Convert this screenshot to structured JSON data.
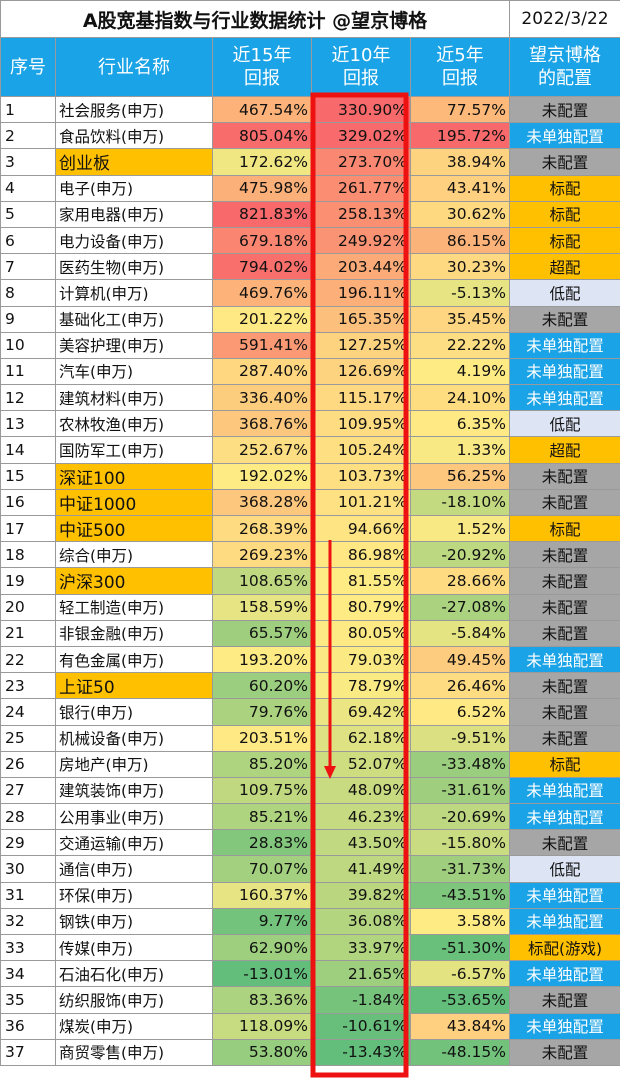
{
  "title": "A股宽基指数与行业数据统计 @望京博格",
  "date": "2022/3/22",
  "headers": {
    "idx": "序号",
    "name": "行业名称",
    "r15": [
      "近15年",
      "回报"
    ],
    "r10": [
      "近10年",
      "回报"
    ],
    "r5": [
      "近5年",
      "回报"
    ],
    "cfg": [
      "望京博格",
      "的配置"
    ]
  },
  "colors": {
    "header_bg": "#1aa3e6",
    "highlight_name": "#ffc000",
    "annotation_red": "#ee1111",
    "scale_low": "#63be7b",
    "scale_mid": "#ffeb84",
    "scale_high": "#f8696b"
  },
  "rows": [
    {
      "idx": "1",
      "name": "社会服务(申万)",
      "hl": false,
      "r15": "467.54%",
      "r10": "330.90%",
      "r5": "77.57%",
      "cfg": "未配置",
      "cfg_type": "gray"
    },
    {
      "idx": "2",
      "name": "食品饮料(申万)",
      "hl": false,
      "r15": "805.04%",
      "r10": "329.02%",
      "r5": "195.72%",
      "cfg": "未单独配置",
      "cfg_type": "blue"
    },
    {
      "idx": "3",
      "name": "创业板",
      "hl": true,
      "r15": "172.62%",
      "r10": "273.70%",
      "r5": "38.94%",
      "cfg": "未配置",
      "cfg_type": "gray"
    },
    {
      "idx": "4",
      "name": "电子(申万)",
      "hl": false,
      "r15": "475.98%",
      "r10": "261.77%",
      "r5": "43.41%",
      "cfg": "标配",
      "cfg_type": "orange"
    },
    {
      "idx": "5",
      "name": "家用电器(申万)",
      "hl": false,
      "r15": "821.83%",
      "r10": "258.13%",
      "r5": "30.62%",
      "cfg": "标配",
      "cfg_type": "orange"
    },
    {
      "idx": "6",
      "name": "电力设备(申万)",
      "hl": false,
      "r15": "679.18%",
      "r10": "249.92%",
      "r5": "86.15%",
      "cfg": "标配",
      "cfg_type": "orange"
    },
    {
      "idx": "7",
      "name": "医药生物(申万)",
      "hl": false,
      "r15": "794.02%",
      "r10": "203.44%",
      "r5": "30.23%",
      "cfg": "超配",
      "cfg_type": "orange"
    },
    {
      "idx": "8",
      "name": "计算机(申万)",
      "hl": false,
      "r15": "469.76%",
      "r10": "196.11%",
      "r5": "-5.13%",
      "cfg": "低配",
      "cfg_type": "light"
    },
    {
      "idx": "9",
      "name": "基础化工(申万)",
      "hl": false,
      "r15": "201.22%",
      "r10": "165.35%",
      "r5": "35.45%",
      "cfg": "未配置",
      "cfg_type": "gray"
    },
    {
      "idx": "10",
      "name": "美容护理(申万)",
      "hl": false,
      "r15": "591.41%",
      "r10": "127.25%",
      "r5": "22.22%",
      "cfg": "未单独配置",
      "cfg_type": "blue"
    },
    {
      "idx": "11",
      "name": "汽车(申万)",
      "hl": false,
      "r15": "287.40%",
      "r10": "126.69%",
      "r5": "4.19%",
      "cfg": "未单独配置",
      "cfg_type": "blue"
    },
    {
      "idx": "12",
      "name": "建筑材料(申万)",
      "hl": false,
      "r15": "336.40%",
      "r10": "115.17%",
      "r5": "24.10%",
      "cfg": "未单独配置",
      "cfg_type": "blue"
    },
    {
      "idx": "13",
      "name": "农林牧渔(申万)",
      "hl": false,
      "r15": "368.76%",
      "r10": "109.95%",
      "r5": "6.35%",
      "cfg": "低配",
      "cfg_type": "light"
    },
    {
      "idx": "14",
      "name": "国防军工(申万)",
      "hl": false,
      "r15": "252.67%",
      "r10": "105.24%",
      "r5": "1.33%",
      "cfg": "超配",
      "cfg_type": "orange"
    },
    {
      "idx": "15",
      "name": "深证100",
      "hl": true,
      "r15": "192.02%",
      "r10": "103.73%",
      "r5": "56.25%",
      "cfg": "未配置",
      "cfg_type": "gray"
    },
    {
      "idx": "16",
      "name": "中证1000",
      "hl": true,
      "r15": "368.28%",
      "r10": "101.21%",
      "r5": "-18.10%",
      "cfg": "未配置",
      "cfg_type": "gray"
    },
    {
      "idx": "17",
      "name": "中证500",
      "hl": true,
      "r15": "268.39%",
      "r10": "94.66%",
      "r5": "1.52%",
      "cfg": "标配",
      "cfg_type": "orange"
    },
    {
      "idx": "18",
      "name": "综合(申万)",
      "hl": false,
      "r15": "269.23%",
      "r10": "86.98%",
      "r5": "-20.92%",
      "cfg": "未配置",
      "cfg_type": "gray"
    },
    {
      "idx": "19",
      "name": "沪深300",
      "hl": true,
      "r15": "108.65%",
      "r10": "81.55%",
      "r5": "28.66%",
      "cfg": "未配置",
      "cfg_type": "gray"
    },
    {
      "idx": "20",
      "name": "轻工制造(申万)",
      "hl": false,
      "r15": "158.59%",
      "r10": "80.79%",
      "r5": "-27.08%",
      "cfg": "未配置",
      "cfg_type": "gray"
    },
    {
      "idx": "21",
      "name": "非银金融(申万)",
      "hl": false,
      "r15": "65.57%",
      "r10": "80.05%",
      "r5": "-5.84%",
      "cfg": "未配置",
      "cfg_type": "gray"
    },
    {
      "idx": "22",
      "name": "有色金属(申万)",
      "hl": false,
      "r15": "193.20%",
      "r10": "79.03%",
      "r5": "49.45%",
      "cfg": "未单独配置",
      "cfg_type": "blue"
    },
    {
      "idx": "23",
      "name": "上证50",
      "hl": true,
      "r15": "60.20%",
      "r10": "78.79%",
      "r5": "26.46%",
      "cfg": "未配置",
      "cfg_type": "gray"
    },
    {
      "idx": "24",
      "name": "银行(申万)",
      "hl": false,
      "r15": "79.76%",
      "r10": "69.42%",
      "r5": "6.52%",
      "cfg": "未配置",
      "cfg_type": "gray"
    },
    {
      "idx": "25",
      "name": "机械设备(申万)",
      "hl": false,
      "r15": "203.51%",
      "r10": "62.18%",
      "r5": "-9.51%",
      "cfg": "未配置",
      "cfg_type": "gray"
    },
    {
      "idx": "26",
      "name": "房地产(申万)",
      "hl": false,
      "r15": "85.20%",
      "r10": "52.07%",
      "r5": "-33.48%",
      "cfg": "标配",
      "cfg_type": "orange"
    },
    {
      "idx": "27",
      "name": "建筑装饰(申万)",
      "hl": false,
      "r15": "109.75%",
      "r10": "48.09%",
      "r5": "-31.61%",
      "cfg": "未单独配置",
      "cfg_type": "blue"
    },
    {
      "idx": "28",
      "name": "公用事业(申万)",
      "hl": false,
      "r15": "85.21%",
      "r10": "46.23%",
      "r5": "-20.69%",
      "cfg": "未单独配置",
      "cfg_type": "blue"
    },
    {
      "idx": "29",
      "name": "交通运输(申万)",
      "hl": false,
      "r15": "28.83%",
      "r10": "43.50%",
      "r5": "-15.80%",
      "cfg": "未配置",
      "cfg_type": "gray"
    },
    {
      "idx": "30",
      "name": "通信(申万)",
      "hl": false,
      "r15": "70.07%",
      "r10": "41.49%",
      "r5": "-31.73%",
      "cfg": "低配",
      "cfg_type": "light"
    },
    {
      "idx": "31",
      "name": "环保(申万)",
      "hl": false,
      "r15": "160.37%",
      "r10": "39.82%",
      "r5": "-43.51%",
      "cfg": "未单独配置",
      "cfg_type": "blue"
    },
    {
      "idx": "32",
      "name": "钢铁(申万)",
      "hl": false,
      "r15": "9.77%",
      "r10": "36.08%",
      "r5": "3.58%",
      "cfg": "未单独配置",
      "cfg_type": "blue"
    },
    {
      "idx": "33",
      "name": "传媒(申万)",
      "hl": false,
      "r15": "62.90%",
      "r10": "33.97%",
      "r5": "-51.30%",
      "cfg": "标配(游戏)",
      "cfg_type": "orange"
    },
    {
      "idx": "34",
      "name": "石油石化(申万)",
      "hl": false,
      "r15": "-13.01%",
      "r10": "21.65%",
      "r5": "-6.57%",
      "cfg": "未单独配置",
      "cfg_type": "blue"
    },
    {
      "idx": "35",
      "name": "纺织服饰(申万)",
      "hl": false,
      "r15": "83.36%",
      "r10": "-1.84%",
      "r5": "-53.65%",
      "cfg": "未配置",
      "cfg_type": "gray"
    },
    {
      "idx": "36",
      "name": "煤炭(申万)",
      "hl": false,
      "r15": "118.09%",
      "r10": "-10.61%",
      "r5": "43.84%",
      "cfg": "未单独配置",
      "cfg_type": "blue"
    },
    {
      "idx": "37",
      "name": "商贸零售(申万)",
      "hl": false,
      "r15": "53.80%",
      "r10": "-13.43%",
      "r5": "-48.15%",
      "cfg": "未配置",
      "cfg_type": "gray"
    }
  ]
}
